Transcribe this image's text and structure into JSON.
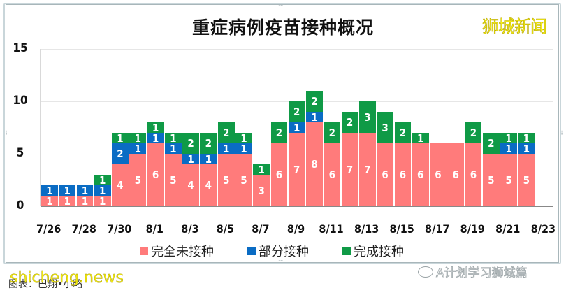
{
  "chart_data": {
    "type": "bar",
    "stacked": true,
    "title": "重症病例疫苗接种概况",
    "xlabel": "",
    "ylabel": "",
    "ylim": [
      0,
      15
    ],
    "yticks": [
      "0",
      "5",
      "10",
      "15"
    ],
    "grid": true,
    "legend_position": "bottom",
    "categories": [
      "7/26",
      "7/27",
      "7/28",
      "7/29",
      "7/30",
      "7/31",
      "8/1",
      "8/2",
      "8/3",
      "8/4",
      "8/5",
      "8/6",
      "8/7",
      "8/8",
      "8/9",
      "8/10",
      "8/11",
      "8/12",
      "8/13",
      "8/14",
      "8/15",
      "8/16",
      "8/17",
      "8/18",
      "8/19",
      "8/20",
      "8/21",
      "8/22"
    ],
    "xtick_labels": [
      "7/26",
      "7/28",
      "7/30",
      "8/1",
      "8/3",
      "8/5",
      "8/7",
      "8/9",
      "8/11",
      "8/13",
      "8/15",
      "8/17",
      "8/19",
      "8/21",
      "8/23"
    ],
    "series": [
      {
        "name": "完全未接种",
        "color": "#ff7b7b",
        "values": [
          1,
          1,
          1,
          1,
          4,
          5,
          6,
          5,
          4,
          4,
          5,
          5,
          3,
          6,
          7,
          8,
          6,
          7,
          7,
          6,
          6,
          6,
          6,
          6,
          6,
          5,
          5,
          5
        ]
      },
      {
        "name": "部分接种",
        "color": "#0a6cc4",
        "values": [
          1,
          1,
          1,
          1,
          2,
          1,
          1,
          1,
          1,
          1,
          1,
          1,
          0,
          0,
          1,
          1,
          0,
          0,
          0,
          0,
          0,
          0,
          0,
          0,
          0,
          0,
          1,
          1
        ]
      },
      {
        "name": "完成接种",
        "color": "#0f9a46",
        "values": [
          0,
          0,
          0,
          1,
          1,
          1,
          1,
          1,
          2,
          2,
          2,
          1,
          1,
          2,
          2,
          2,
          2,
          2,
          3,
          3,
          2,
          1,
          0,
          0,
          2,
          2,
          1,
          1
        ]
      }
    ]
  },
  "header": {
    "title": "重症病例疫苗接种概况",
    "brand": "狮城新闻"
  },
  "legend": [
    {
      "label": "完全未接种",
      "color": "#ff7b7b"
    },
    {
      "label": "部分接种",
      "color": "#0a6cc4"
    },
    {
      "label": "完成接种",
      "color": "#0f9a46"
    }
  ],
  "footer": {
    "caption": "图表：巴翔•小略",
    "watermark_site": "shicheng.news",
    "watermark_wechat": "A计划学习狮城篇"
  }
}
